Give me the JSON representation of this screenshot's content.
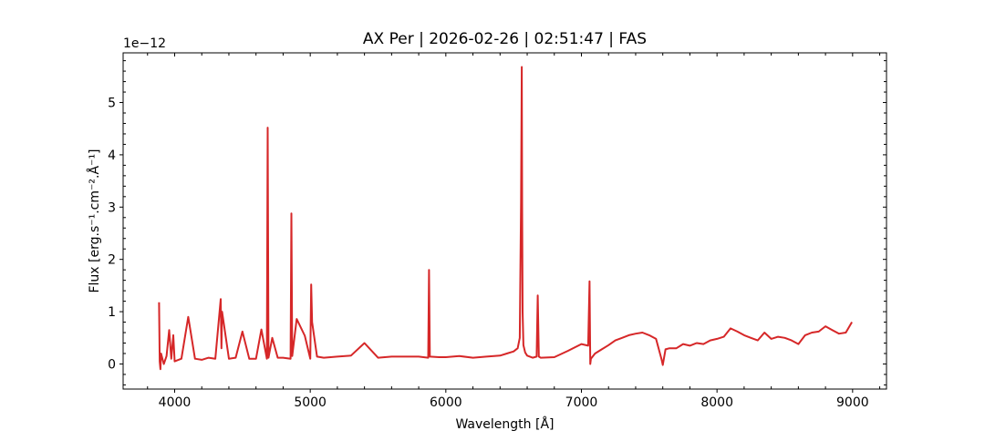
{
  "chart_data": {
    "type": "line",
    "title": "AX Per | 2026-02-26 | 02:51:47 | FAS",
    "xlabel": "Wavelength [Å]",
    "ylabel": "Flux [erg.s⁻¹.cm⁻².Å⁻¹]",
    "y_offset_label": "1e−12",
    "y_scale_factor": 1e-12,
    "xlim": [
      3620,
      9250
    ],
    "ylim": [
      -0.48,
      5.95
    ],
    "x_ticks": [
      4000,
      5000,
      6000,
      7000,
      8000,
      9000
    ],
    "x_tick_labels": [
      "4000",
      "5000",
      "6000",
      "7000",
      "8000",
      "9000"
    ],
    "y_ticks": [
      0,
      1,
      2,
      3,
      4,
      5
    ],
    "y_tick_labels": [
      "0",
      "1",
      "2",
      "3",
      "4",
      "5"
    ],
    "grid": false,
    "series": [
      {
        "color": "#d62728",
        "x": [
          3885,
          3890,
          3895,
          3900,
          3920,
          3940,
          3960,
          3975,
          3990,
          4000,
          4050,
          4100,
          4150,
          4200,
          4250,
          4300,
          4340,
          4345,
          4350,
          4400,
          4450,
          4500,
          4550,
          4600,
          4640,
          4680,
          4686,
          4692,
          4720,
          4760,
          4800,
          4855,
          4861,
          4867,
          4900,
          4960,
          5000,
          5007,
          5014,
          5050,
          5100,
          5200,
          5300,
          5400,
          5500,
          5600,
          5700,
          5800,
          5870,
          5876,
          5882,
          5950,
          6000,
          6100,
          6200,
          6300,
          6400,
          6450,
          6500,
          6530,
          6545,
          6555,
          6560,
          6563,
          6566,
          6572,
          6585,
          6600,
          6640,
          6670,
          6678,
          6686,
          6700,
          6800,
          6900,
          7000,
          7050,
          7060,
          7065,
          7070,
          7100,
          7150,
          7200,
          7250,
          7300,
          7350,
          7400,
          7450,
          7500,
          7550,
          7590,
          7600,
          7620,
          7650,
          7700,
          7750,
          7800,
          7850,
          7900,
          7950,
          8000,
          8050,
          8100,
          8150,
          8200,
          8250,
          8300,
          8350,
          8400,
          8450,
          8500,
          8550,
          8600,
          8650,
          8700,
          8750,
          8800,
          8850,
          8900,
          8950,
          8995
        ],
        "y": [
          1.18,
          0.05,
          -0.1,
          0.2,
          0.0,
          0.15,
          0.65,
          0.1,
          0.55,
          0.05,
          0.1,
          0.9,
          0.1,
          0.08,
          0.12,
          0.1,
          1.24,
          0.3,
          1.0,
          0.1,
          0.12,
          0.62,
          0.1,
          0.1,
          0.66,
          0.1,
          4.52,
          0.12,
          0.5,
          0.12,
          0.12,
          0.1,
          2.88,
          0.15,
          0.86,
          0.54,
          0.1,
          1.52,
          0.8,
          0.14,
          0.12,
          0.14,
          0.16,
          0.4,
          0.12,
          0.14,
          0.14,
          0.14,
          0.12,
          1.8,
          0.14,
          0.13,
          0.13,
          0.15,
          0.12,
          0.14,
          0.16,
          0.2,
          0.24,
          0.3,
          0.5,
          3.1,
          5.68,
          3.0,
          1.0,
          0.36,
          0.22,
          0.16,
          0.12,
          0.14,
          1.31,
          0.14,
          0.12,
          0.13,
          0.25,
          0.38,
          0.35,
          1.58,
          0.0,
          0.1,
          0.2,
          0.28,
          0.36,
          0.45,
          0.5,
          0.55,
          0.58,
          0.6,
          0.55,
          0.48,
          0.1,
          -0.02,
          0.28,
          0.3,
          0.3,
          0.38,
          0.35,
          0.4,
          0.38,
          0.45,
          0.48,
          0.52,
          0.68,
          0.62,
          0.55,
          0.5,
          0.45,
          0.6,
          0.48,
          0.52,
          0.5,
          0.45,
          0.38,
          0.55,
          0.6,
          0.62,
          0.72,
          0.65,
          0.58,
          0.6,
          0.8
        ]
      }
    ]
  }
}
